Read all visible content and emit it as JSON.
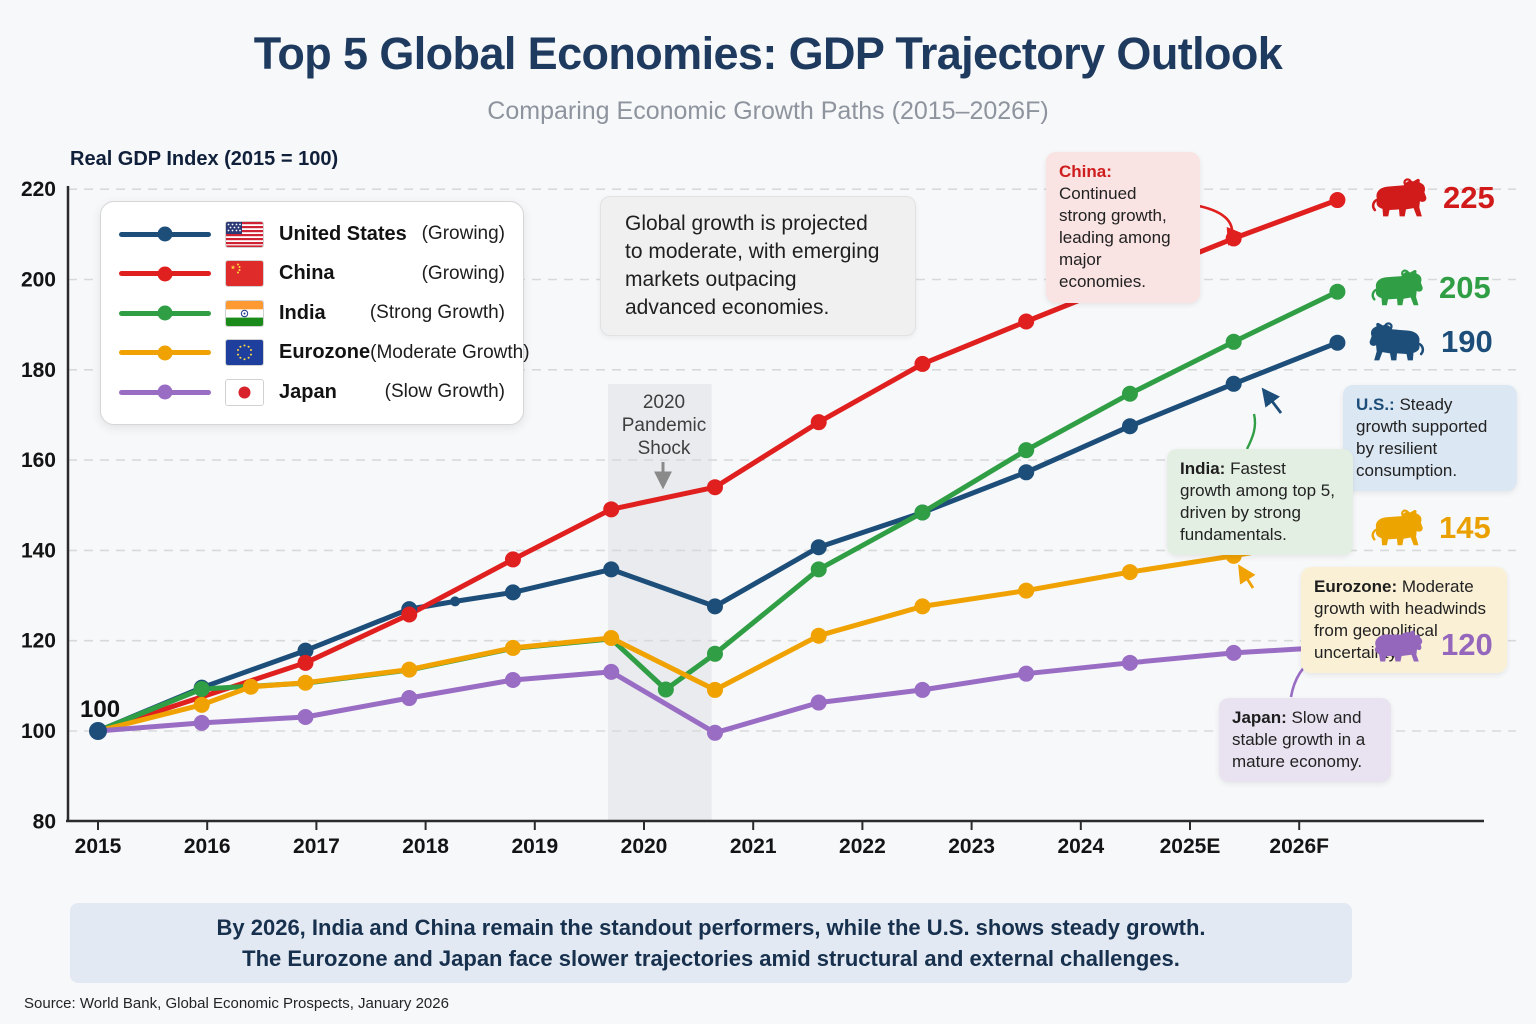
{
  "header": {
    "title": "Top 5 Global Economies: GDP Trajectory Outlook",
    "subtitle": "Comparing Economic Growth Paths (2015–2026F)"
  },
  "axis_title": "Real GDP Index (2015 = 100)",
  "start_label": "100",
  "center_note": "Global growth is projected to moderate, with emerging markets outpacing advanced economies.",
  "pandemic": {
    "l1": "2020",
    "l2": "Pandemic",
    "l3": "Shock"
  },
  "legend": [
    {
      "country": "United States",
      "status": "(Growing)",
      "flag": "us-flag-icon",
      "color": "#1d4e79"
    },
    {
      "country": "China",
      "status": "(Growing)",
      "flag": "china-flag-icon",
      "color": "#e01f1f"
    },
    {
      "country": "India",
      "status": "(Strong Growth)",
      "flag": "india-flag-icon",
      "color": "#2f9e44"
    },
    {
      "country": "Eurozone",
      "status": "(Moderate Growth)",
      "flag": "eu-flag-icon",
      "color": "#f0a202"
    },
    {
      "country": "Japan",
      "status": "(Slow Growth)",
      "flag": "japan-flag-icon",
      "color": "#9a6dc4"
    }
  ],
  "callouts": {
    "china": {
      "title": "China:",
      "text": "Continued strong growth, leading among major economies."
    },
    "us": {
      "title": "U.S.:",
      "text": "Steady growth supported by resilient consumption."
    },
    "india": {
      "title": "India:",
      "text": "Fastest growth among top 5, driven by strong fundamentals."
    },
    "euro": {
      "title": "Eurozone:",
      "text": "Moderate growth with headwinds from geopolitical uncertainty."
    },
    "japan": {
      "title": "Japan:",
      "text": "Slow and stable growth in a mature economy."
    }
  },
  "end_labels": {
    "china": {
      "value": "225",
      "icon": "bull-icon"
    },
    "india": {
      "value": "205",
      "icon": "bull-icon"
    },
    "us": {
      "value": "190",
      "icon": "bull-icon"
    },
    "euro": {
      "value": "145",
      "icon": "bull-icon"
    },
    "japan": {
      "value": "120",
      "icon": "bear-icon"
    }
  },
  "summary": {
    "line1": "By 2026, India and China remain the standout performers, while the U.S. shows steady growth.",
    "line2": "The Eurozone and Japan face slower trajectories amid structural and external challenges."
  },
  "source": "Source: World Bank, Global Economic Prospects, January 2026",
  "chart_data": {
    "type": "line",
    "title": "Top 5 Global Economies: GDP Trajectory Outlook",
    "xlabel": "",
    "ylabel": "Real GDP Index (2015 = 100)",
    "ylim": [
      80,
      228
    ],
    "yticks": [
      80,
      100,
      120,
      140,
      160,
      180,
      200,
      220
    ],
    "grid": true,
    "legend_position": "upper-left",
    "xticks": [
      {
        "year": 2015,
        "label": "2015"
      },
      {
        "year": 2016,
        "label": "2016"
      },
      {
        "year": 2017,
        "label": "2017"
      },
      {
        "year": 2018,
        "label": "2018"
      },
      {
        "year": 2019,
        "label": "2019"
      },
      {
        "year": 2020,
        "label": "2020"
      },
      {
        "year": 2021,
        "label": "2021"
      },
      {
        "year": 2022,
        "label": "2022"
      },
      {
        "year": 2023,
        "label": "2023"
      },
      {
        "year": 2024,
        "label": "2024"
      },
      {
        "year": 2025,
        "label": "2025E"
      },
      {
        "year": 2026,
        "label": "2026F"
      }
    ],
    "pandemic_band": {
      "from": 2019.67,
      "to": 2020.62,
      "label": "2020 Pandemic Shock"
    },
    "series": [
      {
        "id": "us",
        "name": "United States",
        "color": "#1d4e79",
        "end_value": 190,
        "points": [
          [
            2015,
            100,
            1
          ],
          [
            2015.95,
            109.6,
            1
          ],
          [
            2016.9,
            117.8,
            1
          ],
          [
            2017.85,
            127,
            1
          ],
          [
            2018.27,
            128.7,
            2
          ],
          [
            2018.8,
            130.7,
            1
          ],
          [
            2019.7,
            135.8,
            1
          ],
          [
            2020.65,
            127.6,
            1
          ],
          [
            2021.6,
            140.7,
            1
          ],
          [
            2022.55,
            148.4,
            1
          ],
          [
            2023.5,
            157.3,
            1
          ],
          [
            2024.45,
            167.5,
            1
          ],
          [
            2025.4,
            176.9,
            1
          ],
          [
            2026.35,
            186,
            1
          ]
        ]
      },
      {
        "id": "china",
        "name": "China",
        "color": "#e01f1f",
        "end_value": 225,
        "points": [
          [
            2015,
            100,
            0
          ],
          [
            2016.9,
            115.1,
            1
          ],
          [
            2017.85,
            125.8,
            1
          ],
          [
            2018.8,
            138,
            1
          ],
          [
            2019.7,
            149.1,
            1
          ],
          [
            2020.65,
            154,
            1
          ],
          [
            2021.6,
            168.4,
            1
          ],
          [
            2022.55,
            181.3,
            1
          ],
          [
            2023.5,
            190.7,
            1
          ],
          [
            2024.45,
            199.9,
            1
          ],
          [
            2025.4,
            209.1,
            1
          ],
          [
            2026.35,
            217.6,
            1
          ]
        ]
      },
      {
        "id": "india",
        "name": "India",
        "color": "#2f9e44",
        "end_value": 205,
        "points": [
          [
            2015,
            100,
            0
          ],
          [
            2015.95,
            109.3,
            1
          ],
          [
            2016.4,
            109.9,
            0
          ],
          [
            2016.9,
            110.6,
            0
          ],
          [
            2017.85,
            113.5,
            0
          ],
          [
            2018.8,
            118.3,
            0
          ],
          [
            2019.7,
            120.4,
            0
          ],
          [
            2020.2,
            109.2,
            1
          ],
          [
            2020.65,
            117.1,
            1
          ],
          [
            2021.6,
            135.8,
            1
          ],
          [
            2022.55,
            148.4,
            1
          ],
          [
            2023.5,
            162.2,
            1
          ],
          [
            2024.45,
            174.7,
            1
          ],
          [
            2025.4,
            186.2,
            1
          ],
          [
            2026.35,
            197.3,
            1
          ]
        ]
      },
      {
        "id": "euro",
        "name": "Eurozone",
        "color": "#f0a202",
        "end_value": 145,
        "points": [
          [
            2015,
            100,
            0
          ],
          [
            2015.95,
            105.8,
            1
          ],
          [
            2016.4,
            109.8,
            1
          ],
          [
            2016.9,
            110.7,
            1
          ],
          [
            2017.85,
            113.6,
            1
          ],
          [
            2018.8,
            118.4,
            1
          ],
          [
            2019.7,
            120.6,
            1
          ],
          [
            2020.65,
            109.1,
            1
          ],
          [
            2021.6,
            121.1,
            1
          ],
          [
            2022.55,
            127.6,
            1
          ],
          [
            2023.5,
            131.1,
            1
          ],
          [
            2024.45,
            135.2,
            1
          ],
          [
            2025.4,
            138.8,
            1
          ],
          [
            2026.35,
            142.9,
            1
          ]
        ]
      },
      {
        "id": "japan",
        "name": "Japan",
        "color": "#9a6dc4",
        "end_value": 120,
        "points": [
          [
            2015,
            100,
            0
          ],
          [
            2015.95,
            101.8,
            1
          ],
          [
            2016.9,
            103.1,
            1
          ],
          [
            2017.85,
            107.3,
            1
          ],
          [
            2018.8,
            111.3,
            1
          ],
          [
            2019.7,
            113.1,
            1
          ],
          [
            2020.65,
            99.6,
            1
          ],
          [
            2021.6,
            106.3,
            1
          ],
          [
            2022.55,
            109.1,
            1
          ],
          [
            2023.5,
            112.7,
            1
          ],
          [
            2024.45,
            115.1,
            1
          ],
          [
            2025.4,
            117.3,
            1
          ],
          [
            2026.35,
            118.7,
            1
          ]
        ]
      }
    ]
  }
}
